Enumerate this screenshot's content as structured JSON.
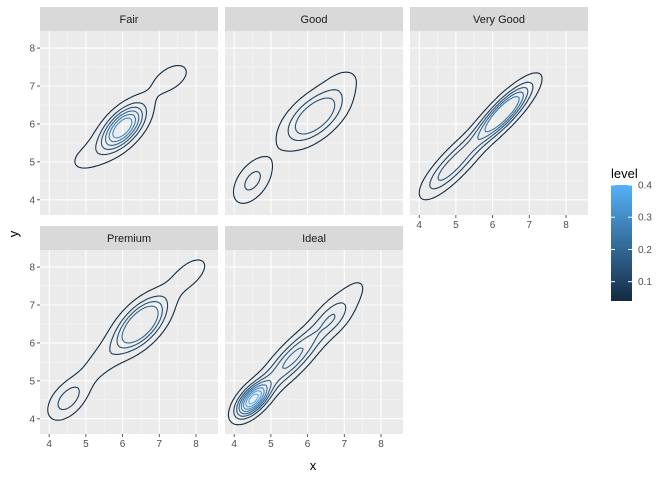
{
  "chart_data": {
    "type": "density2d-contour",
    "facet_var": "cut",
    "xlabel": "x",
    "ylabel": "y",
    "x_ticks": [
      4,
      5,
      6,
      7,
      8
    ],
    "y_ticks": [
      4,
      5,
      6,
      7,
      8
    ],
    "xlim": [
      3.75,
      8.6
    ],
    "ylim": [
      3.6,
      8.45
    ],
    "grid": true,
    "legend": {
      "title": "level",
      "placement": "right",
      "min": 0.04,
      "max": 0.4,
      "ticks": [
        0.1,
        0.2,
        0.3,
        0.4
      ],
      "tick_labels": [
        "0.1",
        "0.2",
        "0.3",
        "0.4"
      ],
      "color_low": "#132b43",
      "color_high": "#56b1f7"
    },
    "panels": [
      {
        "title": "Fair",
        "peaks": [
          {
            "x": 6.0,
            "y": 5.9,
            "sx": 0.4,
            "sy": 0.4,
            "rho": 0.6,
            "w": 0.92
          },
          {
            "x": 7.3,
            "y": 7.2,
            "sx": 0.45,
            "sy": 0.35,
            "rho": 0.5,
            "w": 0.16
          },
          {
            "x": 5.0,
            "y": 5.1,
            "sx": 0.45,
            "sy": 0.35,
            "rho": 0.4,
            "w": 0.12
          }
        ],
        "levels": [
          0.04,
          0.1,
          0.15,
          0.2,
          0.25,
          0.3
        ]
      },
      {
        "title": "Good",
        "peaks": [
          {
            "x": 6.2,
            "y": 6.2,
            "sx": 0.55,
            "sy": 0.48,
            "rho": 0.6,
            "w": 0.6
          },
          {
            "x": 4.5,
            "y": 4.5,
            "sx": 0.35,
            "sy": 0.4,
            "rho": 0.5,
            "w": 0.3
          },
          {
            "x": 7.0,
            "y": 7.2,
            "sx": 0.4,
            "sy": 0.3,
            "rho": 0.3,
            "w": 0.08
          }
        ],
        "levels": [
          0.04,
          0.1,
          0.15
        ]
      },
      {
        "title": "Very Good",
        "peaks": [
          {
            "x": 6.3,
            "y": 6.3,
            "sx": 0.5,
            "sy": 0.5,
            "rho": 0.85,
            "w": 0.9
          },
          {
            "x": 5.0,
            "y": 5.0,
            "sx": 0.5,
            "sy": 0.5,
            "rho": 0.8,
            "w": 0.42
          },
          {
            "x": 4.5,
            "y": 4.5,
            "sx": 0.35,
            "sy": 0.35,
            "rho": 0.7,
            "w": 0.12
          }
        ],
        "levels": [
          0.04,
          0.1,
          0.15,
          0.2,
          0.25
        ]
      },
      {
        "title": "Premium",
        "peaks": [
          {
            "x": 6.5,
            "y": 6.5,
            "sx": 0.45,
            "sy": 0.45,
            "rho": 0.6,
            "w": 0.85
          },
          {
            "x": 4.5,
            "y": 4.5,
            "sx": 0.35,
            "sy": 0.35,
            "rho": 0.5,
            "w": 0.32
          },
          {
            "x": 7.8,
            "y": 7.8,
            "sx": 0.45,
            "sy": 0.4,
            "rho": 0.6,
            "w": 0.16
          },
          {
            "x": 5.4,
            "y": 5.5,
            "sx": 0.5,
            "sy": 0.5,
            "rho": 0.7,
            "w": 0.15
          }
        ],
        "levels": [
          0.04,
          0.1,
          0.15,
          0.2
        ]
      },
      {
        "title": "Ideal",
        "peaks": [
          {
            "x": 4.5,
            "y": 4.5,
            "sx": 0.3,
            "sy": 0.3,
            "rho": 0.6,
            "w": 1.0
          },
          {
            "x": 6.7,
            "y": 6.7,
            "sx": 0.35,
            "sy": 0.35,
            "rho": 0.5,
            "w": 0.28
          },
          {
            "x": 5.6,
            "y": 5.6,
            "sx": 0.6,
            "sy": 0.6,
            "rho": 0.85,
            "w": 0.55
          },
          {
            "x": 7.3,
            "y": 7.4,
            "sx": 0.4,
            "sy": 0.4,
            "rho": 0.5,
            "w": 0.1
          }
        ],
        "levels": [
          0.04,
          0.1,
          0.15,
          0.2,
          0.25,
          0.3,
          0.35,
          0.4
        ]
      }
    ]
  }
}
